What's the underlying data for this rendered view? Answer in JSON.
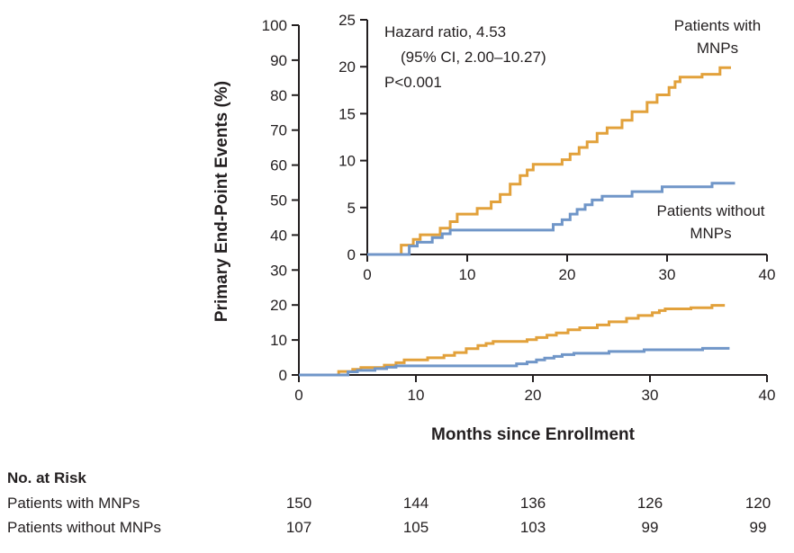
{
  "chart_data": {
    "type": "step-line",
    "title": "",
    "xlabel": "Months since Enrollment",
    "ylabel": "Primary End-Point Events (%)",
    "annotation": {
      "lines": [
        "Hazard ratio, 4.53",
        "(95% CI, 2.00–10.27)",
        "P<0.001"
      ]
    },
    "series": [
      {
        "id": "with-mnps",
        "name": "Patients with MNPs",
        "color": "#E2A13B",
        "x_end": 36.4,
        "steps": [
          [
            3.4,
            1.0
          ],
          [
            4.6,
            1.6
          ],
          [
            5.3,
            2.1
          ],
          [
            7.3,
            2.8
          ],
          [
            8.3,
            3.5
          ],
          [
            9.0,
            4.3
          ],
          [
            11.0,
            4.9
          ],
          [
            12.4,
            5.6
          ],
          [
            13.3,
            6.4
          ],
          [
            14.3,
            7.5
          ],
          [
            15.3,
            8.4
          ],
          [
            16.0,
            9.0
          ],
          [
            16.6,
            9.6
          ],
          [
            19.5,
            10.1
          ],
          [
            20.3,
            10.7
          ],
          [
            21.2,
            11.4
          ],
          [
            22.0,
            12.0
          ],
          [
            23.0,
            12.9
          ],
          [
            24.0,
            13.5
          ],
          [
            25.5,
            14.3
          ],
          [
            26.5,
            15.2
          ],
          [
            28.0,
            16.2
          ],
          [
            29.0,
            17.0
          ],
          [
            30.2,
            17.8
          ],
          [
            30.8,
            18.4
          ],
          [
            31.3,
            18.9
          ],
          [
            33.5,
            19.2
          ],
          [
            35.3,
            19.9
          ]
        ]
      },
      {
        "id": "without-mnps",
        "name": "Patients without MNPs",
        "color": "#7096C8",
        "x_end": 36.8,
        "steps": [
          [
            4.2,
            0.9
          ],
          [
            5.0,
            1.3
          ],
          [
            6.5,
            1.8
          ],
          [
            7.5,
            2.2
          ],
          [
            8.3,
            2.6
          ],
          [
            18.6,
            3.2
          ],
          [
            19.5,
            3.7
          ],
          [
            20.3,
            4.3
          ],
          [
            21.0,
            4.8
          ],
          [
            21.8,
            5.3
          ],
          [
            22.5,
            5.8
          ],
          [
            23.5,
            6.2
          ],
          [
            26.5,
            6.7
          ],
          [
            29.5,
            7.2
          ],
          [
            34.5,
            7.6
          ]
        ]
      }
    ],
    "panels": [
      {
        "id": "main",
        "xlim": [
          0,
          40
        ],
        "ylim": [
          0,
          100
        ],
        "xticks": [
          0,
          10,
          20,
          30,
          40
        ],
        "yticks": [
          0,
          10,
          20,
          30,
          40,
          50,
          60,
          70,
          80,
          90,
          100
        ],
        "grid": false
      },
      {
        "id": "inset",
        "xlim": [
          0,
          40
        ],
        "ylim": [
          0,
          25
        ],
        "xticks": [
          0,
          10,
          20,
          30,
          40
        ],
        "yticks": [
          0,
          5,
          10,
          15,
          20,
          25
        ],
        "grid": false
      }
    ]
  },
  "risk_table": {
    "title": "No. at Risk",
    "rows": [
      {
        "label": "Patients with MNPs",
        "values": [
          "150",
          "144",
          "136",
          "126",
          "120"
        ]
      },
      {
        "label": "Patients without MNPs",
        "values": [
          "107",
          "105",
          "103",
          "99",
          "99"
        ]
      }
    ]
  }
}
